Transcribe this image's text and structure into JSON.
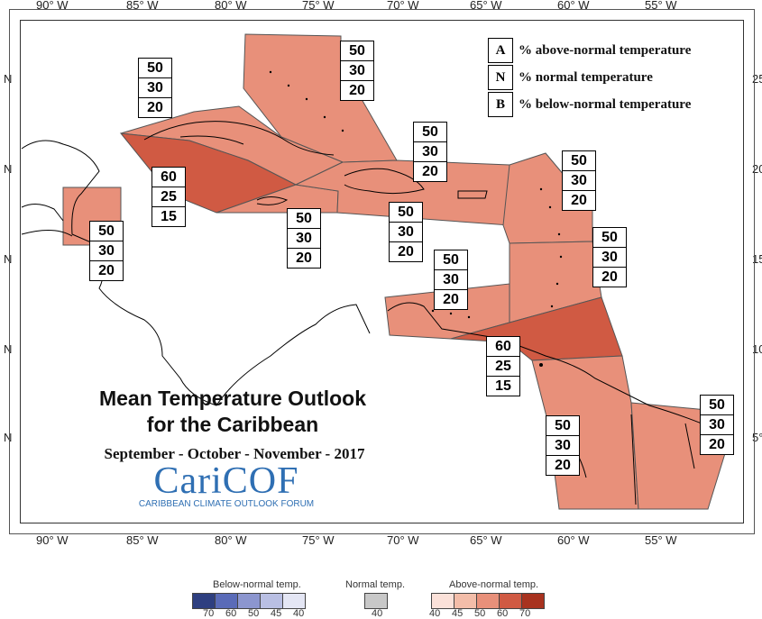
{
  "axes": {
    "x_ticks": [
      "90° W",
      "85° W",
      "80° W",
      "75° W",
      "70° W",
      "65° W",
      "60° W",
      "55° W"
    ],
    "y_ticks_left": [
      "N",
      "N",
      "N",
      "N",
      "N"
    ],
    "y_ticks_right": [
      "25",
      "20",
      "15",
      "10",
      "5°"
    ]
  },
  "legend_key": [
    {
      "letter": "A",
      "text": "% above-normal temperature"
    },
    {
      "letter": "N",
      "text": "% normal temperature"
    },
    {
      "letter": "B",
      "text": "% below-normal temperature"
    }
  ],
  "title_line1": "Mean Temperature Outlook",
  "title_line2": "for the Caribbean",
  "subtitle": "September - October - November - 2017",
  "logo": {
    "main": "CariCOF",
    "sub": "CARIBBEAN CLIMATE OUTLOOK FORUM"
  },
  "forecast_boxes": [
    {
      "region": "bahamas",
      "A": "50",
      "N": "30",
      "B": "20"
    },
    {
      "region": "cuba",
      "A": "50",
      "N": "30",
      "B": "20"
    },
    {
      "region": "hispaniola",
      "A": "50",
      "N": "30",
      "B": "20"
    },
    {
      "region": "cayman-jamaica",
      "A": "60",
      "N": "25",
      "B": "15"
    },
    {
      "region": "jamaica-south",
      "A": "50",
      "N": "30",
      "B": "20"
    },
    {
      "region": "puerto-rico",
      "A": "50",
      "N": "30",
      "B": "20"
    },
    {
      "region": "leeward-islands",
      "A": "50",
      "N": "30",
      "B": "20"
    },
    {
      "region": "belize",
      "A": "50",
      "N": "30",
      "B": "20"
    },
    {
      "region": "windward-islands",
      "A": "50",
      "N": "30",
      "B": "20"
    },
    {
      "region": "abc-islands",
      "A": "50",
      "N": "30",
      "B": "20"
    },
    {
      "region": "trinidad-venezuela",
      "A": "60",
      "N": "25",
      "B": "15"
    },
    {
      "region": "guyana",
      "A": "50",
      "N": "30",
      "B": "20"
    },
    {
      "region": "suriname-guiana",
      "A": "50",
      "N": "30",
      "B": "20"
    }
  ],
  "colors": {
    "above_50": "#e8907a",
    "above_60": "#d05a43",
    "outline": "#555555",
    "coast": "#000000"
  },
  "scale": {
    "below_title": "Below-normal temp.",
    "normal_title": "Normal temp.",
    "above_title": "Above-normal temp.",
    "below_labels": [
      "70",
      "60",
      "50",
      "45",
      "40"
    ],
    "normal_labels": [
      "40"
    ],
    "above_labels": [
      "40",
      "45",
      "50",
      "60",
      "70"
    ],
    "below_colors": [
      "#2e3f80",
      "#5a6bb8",
      "#8c96cf",
      "#b9bfe3",
      "#e4e6f4"
    ],
    "normal_colors": [
      "#c8c8c8"
    ],
    "above_colors": [
      "#fbe1d9",
      "#f3bda9",
      "#e8907a",
      "#d05a43",
      "#a8321f"
    ]
  }
}
